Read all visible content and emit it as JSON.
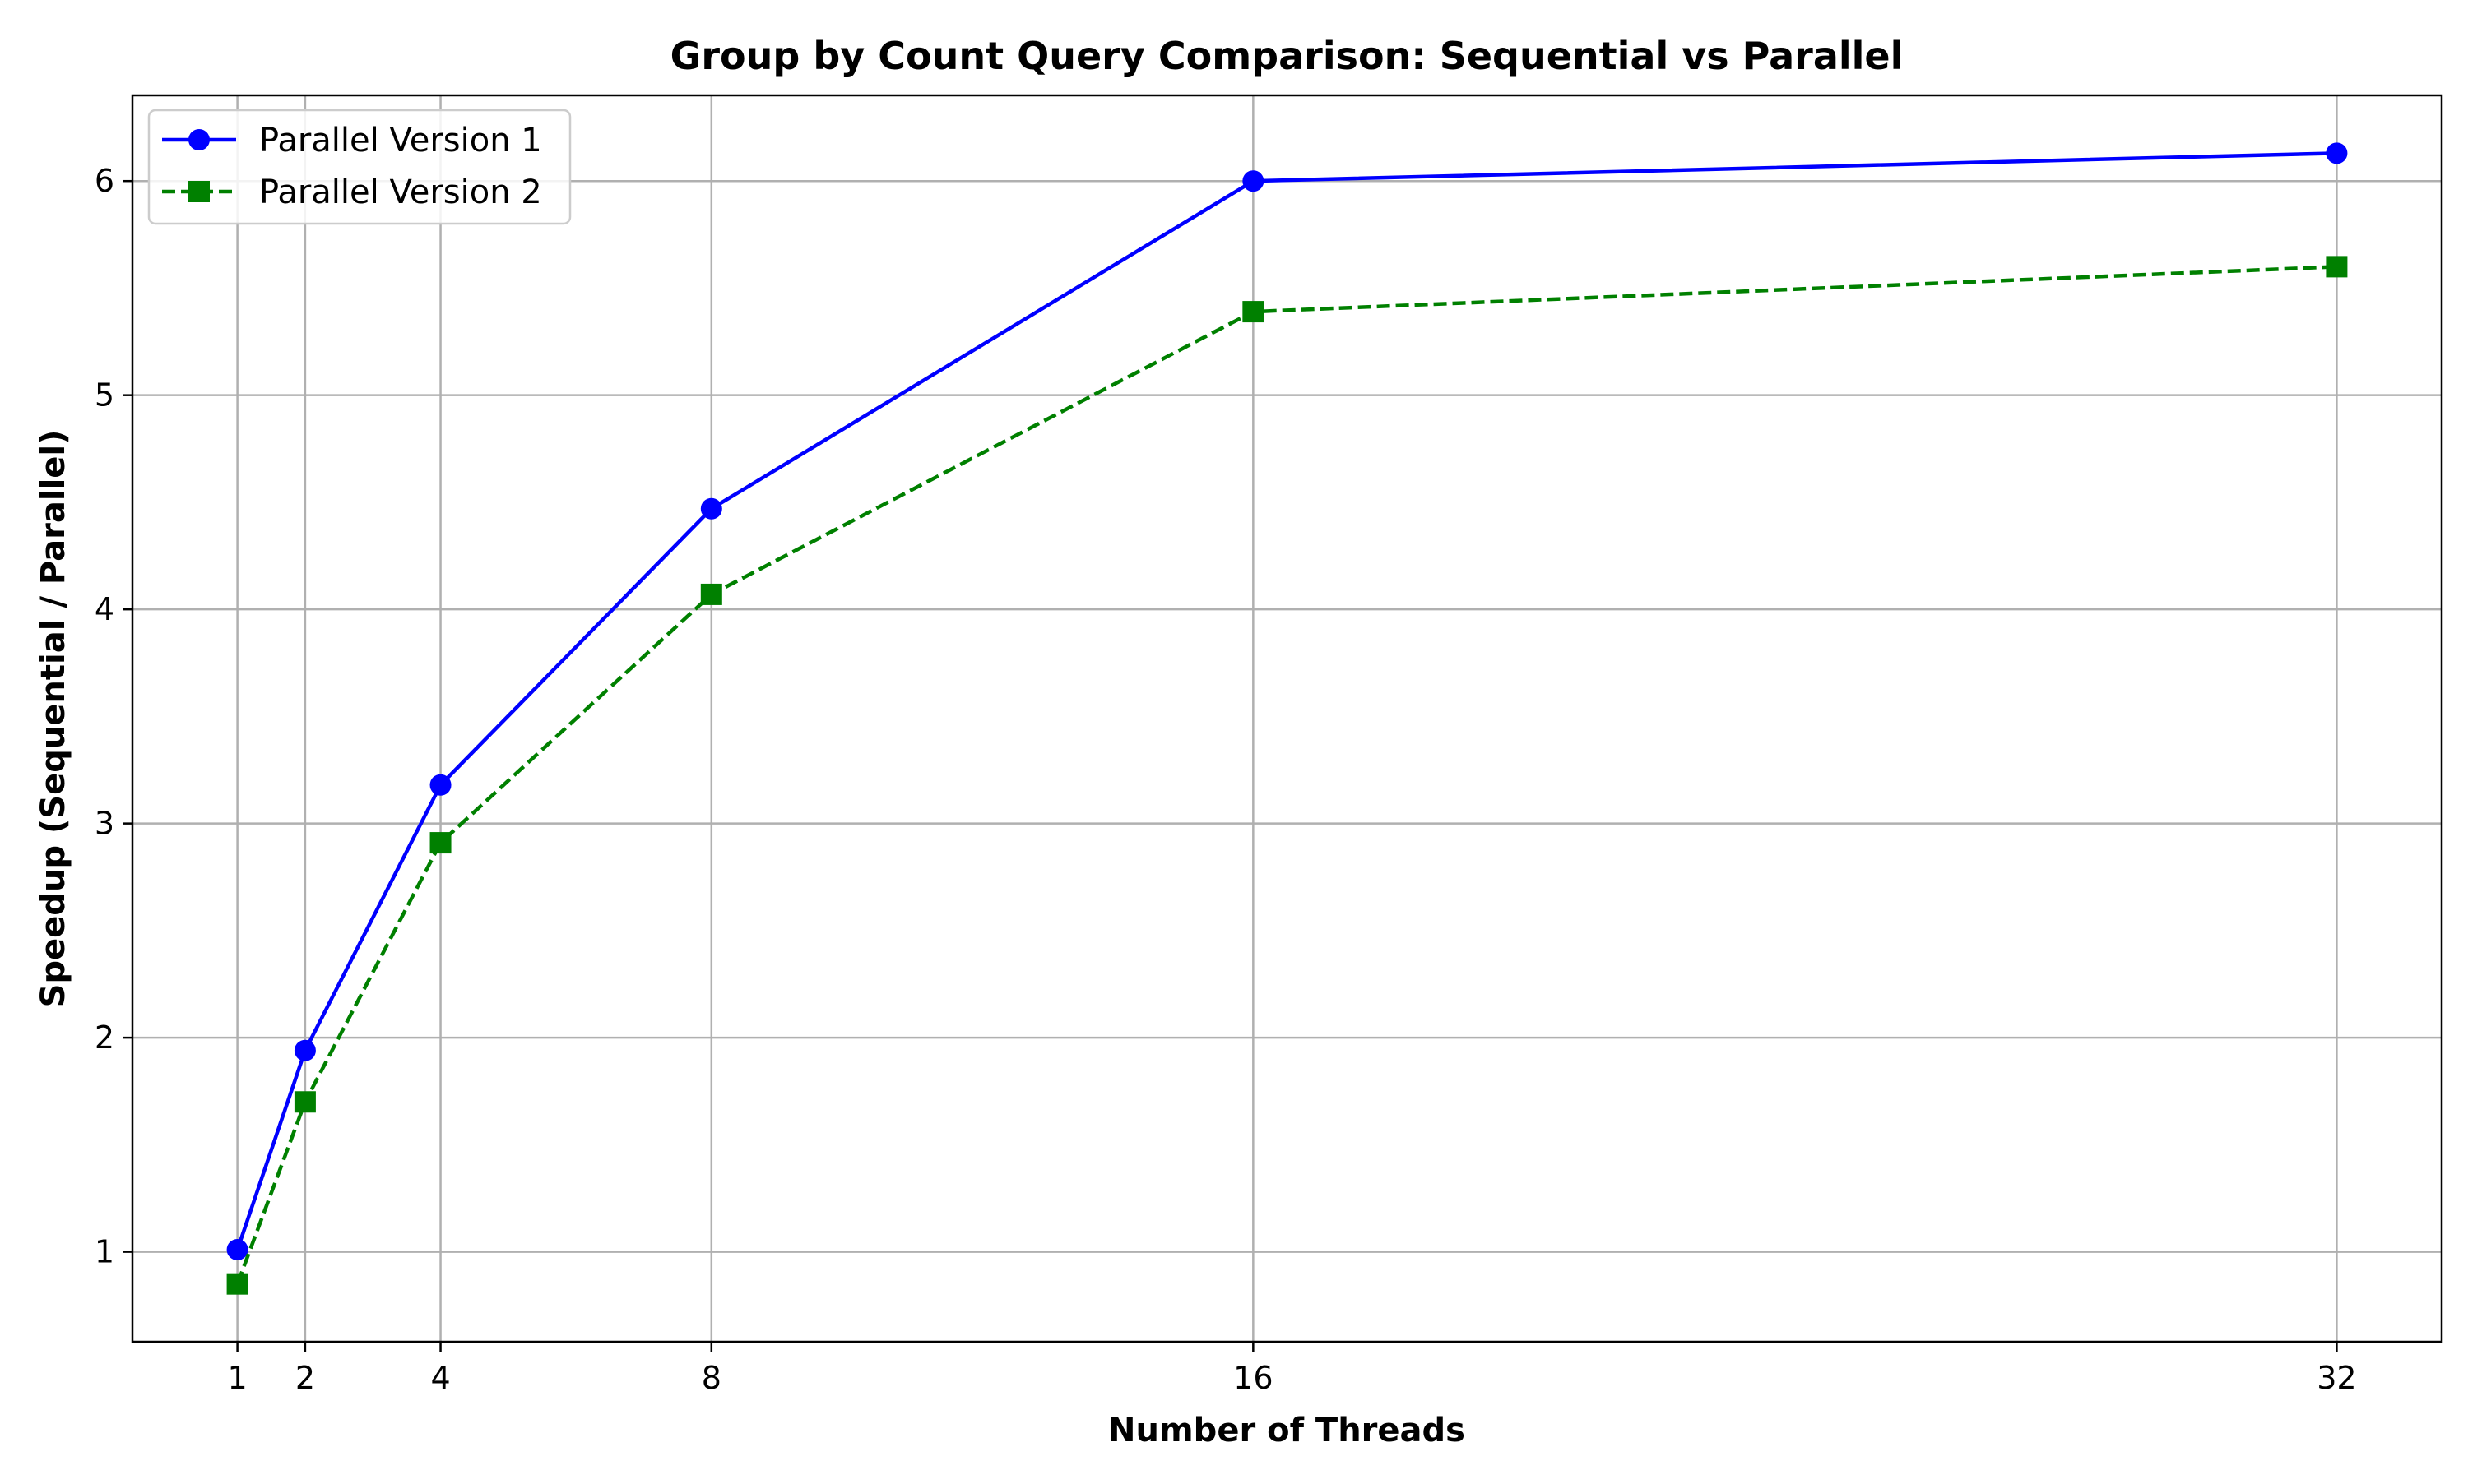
{
  "chart_data": {
    "type": "line",
    "title": "Group by Count Query Comparison: Sequential vs Parallel",
    "xlabel": "Number of Threads",
    "ylabel": "Speedup (Sequential / Parallel)",
    "x": [
      1,
      2,
      4,
      8,
      16,
      32
    ],
    "x_ticks": [
      "1",
      "2",
      "4",
      "8",
      "16",
      "32"
    ],
    "y_ticks": [
      "1",
      "2",
      "3",
      "4",
      "5",
      "6"
    ],
    "xlim": [
      -0.55,
      33.55
    ],
    "ylim": [
      0.58,
      6.4
    ],
    "grid": true,
    "legend_position": "top-left",
    "series": [
      {
        "name": "Parallel Version 1",
        "values": [
          1.01,
          1.94,
          3.18,
          4.47,
          6.0,
          6.13
        ],
        "color": "#0000ff",
        "line_style": "solid",
        "marker": "circle"
      },
      {
        "name": "Parallel Version 2",
        "values": [
          0.85,
          1.7,
          2.91,
          4.07,
          5.39,
          5.6
        ],
        "color": "#008000",
        "line_style": "dashed",
        "marker": "square"
      }
    ]
  }
}
